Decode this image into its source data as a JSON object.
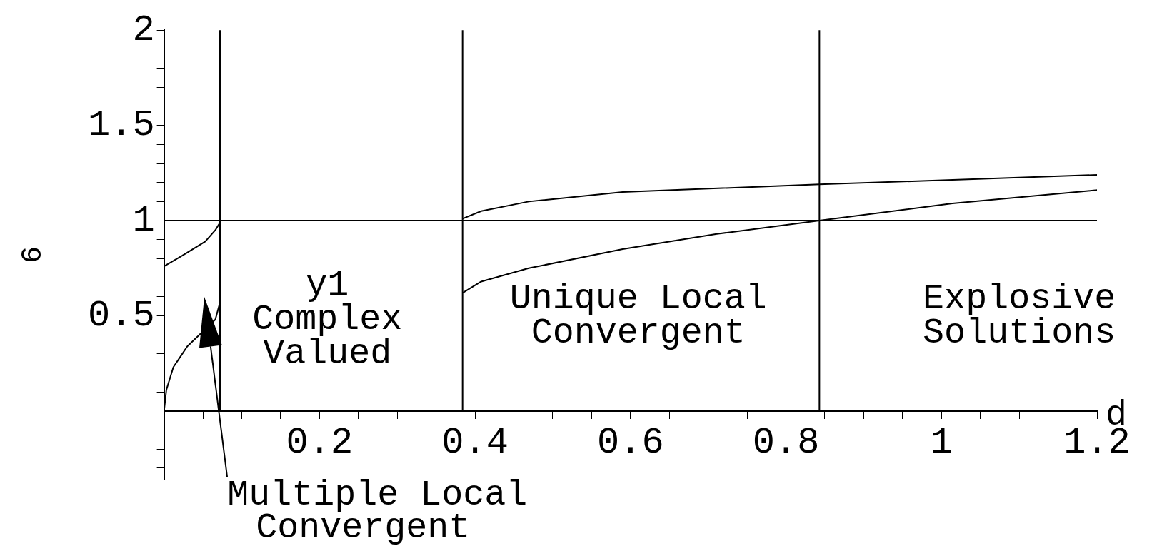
{
  "chart_data": {
    "type": "line",
    "xlabel": "d",
    "ylabel": "6",
    "xlim": [
      0,
      1.2
    ],
    "ylim": [
      -0.36,
      2
    ],
    "xticks": [
      {
        "value": 0.05,
        "label": null
      },
      {
        "value": 0.1,
        "label": null
      },
      {
        "value": 0.15,
        "label": null
      },
      0.2,
      {
        "value": 0.25,
        "label": null
      },
      {
        "value": 0.3,
        "label": null
      },
      {
        "value": 0.35,
        "label": null
      },
      0.4,
      {
        "value": 0.45,
        "label": null
      },
      {
        "value": 0.5,
        "label": null
      },
      {
        "value": 0.55,
        "label": null
      },
      0.6,
      {
        "value": 0.65,
        "label": null
      },
      {
        "value": 0.7,
        "label": null
      },
      {
        "value": 0.75,
        "label": null
      },
      0.8,
      {
        "value": 0.85,
        "label": null
      },
      {
        "value": 0.9,
        "label": null
      },
      {
        "value": 0.95,
        "label": null
      },
      1,
      {
        "value": 1.05,
        "label": null
      },
      {
        "value": 1.1,
        "label": null
      },
      {
        "value": 1.15,
        "label": null
      },
      1.2
    ],
    "yticks": [
      {
        "value": -0.3,
        "label": null
      },
      {
        "value": -0.2,
        "label": null
      },
      {
        "value": -0.1,
        "label": null
      },
      {
        "value": 0.1,
        "label": null
      },
      {
        "value": 0.2,
        "label": null
      },
      {
        "value": 0.3,
        "label": null
      },
      {
        "value": 0.4,
        "label": null
      },
      0.5,
      {
        "value": 0.6,
        "label": null
      },
      {
        "value": 0.7,
        "label": null
      },
      {
        "value": 0.8,
        "label": null
      },
      {
        "value": 0.9,
        "label": null
      },
      1,
      {
        "value": 1.1,
        "label": null
      },
      {
        "value": 1.2,
        "label": null
      },
      {
        "value": 1.3,
        "label": null
      },
      {
        "value": 1.4,
        "label": null
      },
      1.5,
      {
        "value": 1.6,
        "label": null
      },
      {
        "value": 1.7,
        "label": null
      },
      {
        "value": 1.8,
        "label": null
      },
      {
        "value": 1.9,
        "label": null
      },
      2
    ],
    "series": [
      {
        "color": "#000000",
        "x": [
          0,
          0.025,
          0.053,
          0.066,
          0.072
        ],
        "values": [
          0.76,
          0.82,
          0.89,
          0.95,
          0.99
        ]
      },
      {
        "color": "#000000",
        "x": [
          0,
          0.003,
          0.012,
          0.03,
          0.053,
          0.066,
          0.072
        ],
        "values": [
          0,
          0.11,
          0.23,
          0.34,
          null,
          0.48,
          0.57
        ]
      },
      {
        "color": "#000000",
        "x": [
          0.384,
          0.408,
          0.469,
          0.59,
          0.843,
          1.2
        ],
        "values": [
          1.01,
          1.05,
          1.1,
          1.15,
          1.19,
          1.24
        ]
      },
      {
        "color": "#000000",
        "x": [
          0.384,
          0.408,
          0.469,
          0.59,
          0.711,
          0.843,
          1.014,
          1.2
        ],
        "values": [
          0.62,
          0.68,
          0.75,
          0.85,
          0.93,
          1,
          1.09,
          1.16
        ]
      }
    ],
    "ref_lines": [
      {
        "axis": "x",
        "value": 0.072,
        "color": "#000000"
      },
      {
        "axis": "x",
        "value": 0.384,
        "color": "#000000"
      },
      {
        "axis": "x",
        "value": 0.843,
        "color": "#000000"
      },
      {
        "axis": "y",
        "value": 1,
        "color": "#000000"
      }
    ],
    "annotations": [
      "y1\nComplex\nValued",
      "Unique Local\nConvergent",
      "Explosive\nSolutions",
      "Multiple Local\nConvergent"
    ],
    "marker": "none",
    "line_style": "solid",
    "grid": false,
    "legend": false
  }
}
